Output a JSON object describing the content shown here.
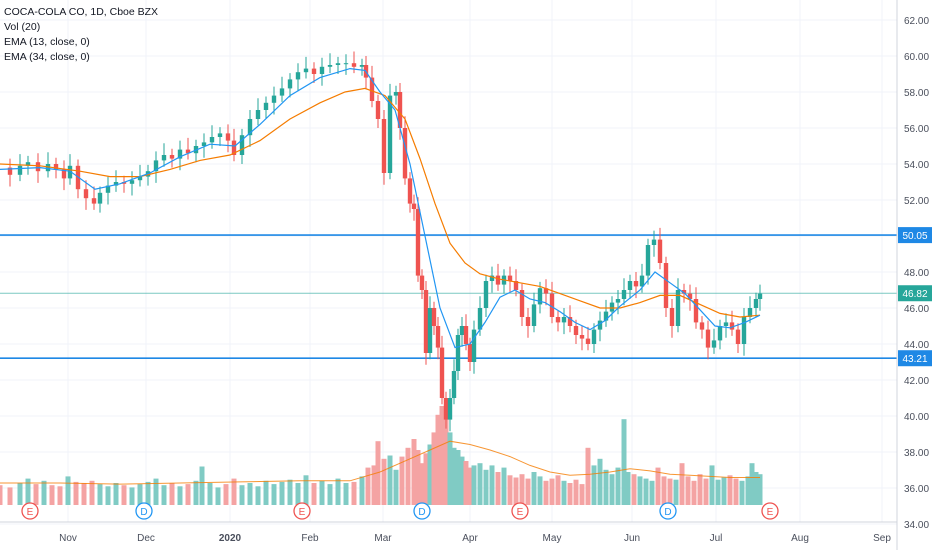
{
  "legend": {
    "symbol": "COCA-COLA CO, 1D, Cboe BZX",
    "vol": "Vol (20)",
    "ema13": "EMA (13, close, 0)",
    "ema34": "EMA (34, close, 0)"
  },
  "colors": {
    "up": "#26a69a",
    "down": "#ef5350",
    "vol_up": "#80cbc4",
    "vol_down": "#f4a3a3",
    "ema13": "#2196f3",
    "ema34": "#f57c00",
    "vol_ma": "#f57c00",
    "hline": "#1e88e5",
    "last": "#26a69a",
    "grid": "#f0f3fa"
  },
  "chart_data": {
    "type": "candlestick",
    "title": "COCA-COLA CO, 1D, Cboe BZX",
    "y_ticks": [
      "62.00",
      "60.00",
      "58.00",
      "56.00",
      "54.00",
      "52.00",
      "50.00",
      "48.00",
      "46.00",
      "44.00",
      "42.00",
      "40.00",
      "38.00",
      "36.00",
      "34.00"
    ],
    "y_range": [
      34,
      63
    ],
    "x_ticks": [
      "Nov",
      "Dec",
      "2020",
      "Feb",
      "Mar",
      "Apr",
      "May",
      "Jun",
      "Jul",
      "Aug",
      "Sep"
    ],
    "horizontal_lines": [
      {
        "label": "50.05",
        "value": 50.05
      },
      {
        "label": "43.21",
        "value": 43.21
      }
    ],
    "last_price": {
      "label": "46.82",
      "value": 46.82
    },
    "events": [
      {
        "label": "E",
        "month": "Oct",
        "kind": "earnings"
      },
      {
        "label": "D",
        "month": "Nov",
        "kind": "dividend"
      },
      {
        "label": "E",
        "month": "Jan",
        "kind": "earnings"
      },
      {
        "label": "D",
        "month": "Mar",
        "kind": "dividend"
      },
      {
        "label": "E",
        "month": "Apr",
        "kind": "earnings"
      },
      {
        "label": "D",
        "month": "Jun",
        "kind": "dividend"
      },
      {
        "label": "E",
        "month": "Jul",
        "kind": "earnings"
      }
    ],
    "close_path": [
      [
        0,
        53.8
      ],
      [
        10,
        53.4
      ],
      [
        20,
        53.9
      ],
      [
        28,
        54.1
      ],
      [
        38,
        53.6
      ],
      [
        48,
        54.0
      ],
      [
        56,
        53.7
      ],
      [
        64,
        53.2
      ],
      [
        70,
        53.9
      ],
      [
        78,
        52.6
      ],
      [
        86,
        52.1
      ],
      [
        94,
        51.8
      ],
      [
        100,
        52.4
      ],
      [
        108,
        52.8
      ],
      [
        116,
        53.0
      ],
      [
        124,
        52.9
      ],
      [
        132,
        53.1
      ],
      [
        140,
        53.3
      ],
      [
        148,
        53.6
      ],
      [
        156,
        54.2
      ],
      [
        164,
        54.5
      ],
      [
        172,
        54.3
      ],
      [
        180,
        54.8
      ],
      [
        188,
        54.6
      ],
      [
        196,
        55.0
      ],
      [
        204,
        55.2
      ],
      [
        212,
        55.5
      ],
      [
        220,
        55.7
      ],
      [
        228,
        55.3
      ],
      [
        234,
        54.5
      ],
      [
        242,
        55.6
      ],
      [
        250,
        56.5
      ],
      [
        258,
        57.0
      ],
      [
        266,
        57.4
      ],
      [
        274,
        57.8
      ],
      [
        282,
        58.2
      ],
      [
        290,
        58.7
      ],
      [
        298,
        59.1
      ],
      [
        306,
        59.3
      ],
      [
        314,
        59.0
      ],
      [
        322,
        59.4
      ],
      [
        330,
        59.5
      ],
      [
        338,
        59.6
      ],
      [
        346,
        59.6
      ],
      [
        354,
        59.4
      ],
      [
        362,
        59.5
      ],
      [
        366,
        58.8
      ],
      [
        372,
        57.5
      ],
      [
        378,
        56.5
      ],
      [
        384,
        53.5
      ],
      [
        390,
        57.8
      ],
      [
        396,
        58.0
      ],
      [
        400,
        56.0
      ],
      [
        405,
        53.2
      ],
      [
        410,
        51.8
      ],
      [
        414,
        51.5
      ],
      [
        418,
        47.8
      ],
      [
        422,
        47.0
      ],
      [
        426,
        43.5
      ],
      [
        430,
        46.0
      ],
      [
        434,
        45.0
      ],
      [
        438,
        43.8
      ],
      [
        442,
        41.0
      ],
      [
        446,
        39.8
      ],
      [
        450,
        41.0
      ],
      [
        454,
        42.5
      ],
      [
        458,
        44.5
      ],
      [
        462,
        45.0
      ],
      [
        466,
        44.0
      ],
      [
        470,
        43.0
      ],
      [
        474,
        44.8
      ],
      [
        480,
        46.0
      ],
      [
        486,
        47.5
      ],
      [
        492,
        47.8
      ],
      [
        498,
        47.3
      ],
      [
        504,
        47.8
      ],
      [
        510,
        47.5
      ],
      [
        516,
        47.0
      ],
      [
        522,
        45.5
      ],
      [
        528,
        45.0
      ],
      [
        534,
        46.2
      ],
      [
        540,
        47.1
      ],
      [
        546,
        46.8
      ],
      [
        552,
        45.5
      ],
      [
        558,
        45.2
      ],
      [
        564,
        45.5
      ],
      [
        570,
        45.0
      ],
      [
        576,
        44.5
      ],
      [
        582,
        44.3
      ],
      [
        588,
        44.0
      ],
      [
        594,
        44.8
      ],
      [
        600,
        45.3
      ],
      [
        606,
        45.8
      ],
      [
        612,
        46.3
      ],
      [
        618,
        46.5
      ],
      [
        624,
        47.0
      ],
      [
        630,
        47.5
      ],
      [
        636,
        47.2
      ],
      [
        642,
        47.8
      ],
      [
        648,
        49.5
      ],
      [
        654,
        49.8
      ],
      [
        660,
        48.5
      ],
      [
        666,
        46.0
      ],
      [
        672,
        45.0
      ],
      [
        678,
        47.0
      ],
      [
        684,
        46.8
      ],
      [
        690,
        46.5
      ],
      [
        696,
        45.2
      ],
      [
        702,
        44.8
      ],
      [
        708,
        43.8
      ],
      [
        714,
        44.2
      ],
      [
        720,
        45.0
      ],
      [
        726,
        45.2
      ],
      [
        732,
        44.8
      ],
      [
        738,
        44.0
      ],
      [
        744,
        45.5
      ],
      [
        750,
        46.0
      ],
      [
        756,
        46.5
      ],
      [
        760,
        46.8
      ]
    ],
    "ema13_path": [
      [
        0,
        53.7
      ],
      [
        40,
        53.8
      ],
      [
        70,
        53.6
      ],
      [
        95,
        52.6
      ],
      [
        120,
        52.9
      ],
      [
        150,
        53.5
      ],
      [
        180,
        54.4
      ],
      [
        210,
        55.1
      ],
      [
        235,
        55.0
      ],
      [
        260,
        56.2
      ],
      [
        290,
        57.8
      ],
      [
        320,
        58.8
      ],
      [
        350,
        59.3
      ],
      [
        365,
        59.2
      ],
      [
        380,
        58.0
      ],
      [
        395,
        57.0
      ],
      [
        410,
        54.0
      ],
      [
        425,
        50.0
      ],
      [
        440,
        46.0
      ],
      [
        455,
        43.8
      ],
      [
        470,
        44.0
      ],
      [
        485,
        45.2
      ],
      [
        500,
        46.6
      ],
      [
        515,
        47.0
      ],
      [
        530,
        46.5
      ],
      [
        545,
        46.3
      ],
      [
        560,
        45.8
      ],
      [
        575,
        45.2
      ],
      [
        590,
        44.8
      ],
      [
        605,
        45.3
      ],
      [
        620,
        46.1
      ],
      [
        640,
        47.0
      ],
      [
        655,
        48.0
      ],
      [
        670,
        47.4
      ],
      [
        685,
        46.8
      ],
      [
        700,
        45.9
      ],
      [
        715,
        45.0
      ],
      [
        730,
        44.9
      ],
      [
        745,
        45.2
      ],
      [
        760,
        45.6
      ]
    ],
    "ema34_path": [
      [
        0,
        54.0
      ],
      [
        40,
        53.9
      ],
      [
        80,
        53.6
      ],
      [
        110,
        53.3
      ],
      [
        140,
        53.3
      ],
      [
        170,
        53.7
      ],
      [
        200,
        54.2
      ],
      [
        230,
        54.5
      ],
      [
        260,
        55.3
      ],
      [
        290,
        56.5
      ],
      [
        320,
        57.4
      ],
      [
        345,
        58.0
      ],
      [
        365,
        58.2
      ],
      [
        385,
        57.8
      ],
      [
        405,
        56.5
      ],
      [
        420,
        54.3
      ],
      [
        435,
        51.8
      ],
      [
        450,
        49.6
      ],
      [
        465,
        48.5
      ],
      [
        480,
        47.9
      ],
      [
        500,
        47.6
      ],
      [
        520,
        47.4
      ],
      [
        540,
        47.2
      ],
      [
        560,
        46.8
      ],
      [
        580,
        46.4
      ],
      [
        600,
        46.0
      ],
      [
        620,
        46.0
      ],
      [
        640,
        46.3
      ],
      [
        660,
        46.7
      ],
      [
        680,
        46.7
      ],
      [
        700,
        46.2
      ],
      [
        720,
        45.7
      ],
      [
        740,
        45.5
      ],
      [
        760,
        45.6
      ]
    ],
    "volume_relative": [
      [
        0,
        0.18
      ],
      [
        10,
        0.16
      ],
      [
        20,
        0.2
      ],
      [
        28,
        0.24
      ],
      [
        36,
        0.19
      ],
      [
        44,
        0.22
      ],
      [
        52,
        0.18
      ],
      [
        60,
        0.17
      ],
      [
        68,
        0.26
      ],
      [
        76,
        0.21
      ],
      [
        84,
        0.2
      ],
      [
        92,
        0.22
      ],
      [
        100,
        0.19
      ],
      [
        108,
        0.17
      ],
      [
        116,
        0.2
      ],
      [
        124,
        0.18
      ],
      [
        132,
        0.16
      ],
      [
        140,
        0.19
      ],
      [
        148,
        0.21
      ],
      [
        156,
        0.24
      ],
      [
        164,
        0.18
      ],
      [
        172,
        0.2
      ],
      [
        180,
        0.17
      ],
      [
        188,
        0.19
      ],
      [
        196,
        0.22
      ],
      [
        202,
        0.35
      ],
      [
        210,
        0.2
      ],
      [
        218,
        0.16
      ],
      [
        226,
        0.19
      ],
      [
        234,
        0.24
      ],
      [
        242,
        0.18
      ],
      [
        250,
        0.2
      ],
      [
        258,
        0.17
      ],
      [
        266,
        0.22
      ],
      [
        274,
        0.19
      ],
      [
        282,
        0.21
      ],
      [
        290,
        0.23
      ],
      [
        298,
        0.2
      ],
      [
        306,
        0.27
      ],
      [
        314,
        0.2
      ],
      [
        322,
        0.22
      ],
      [
        330,
        0.19
      ],
      [
        338,
        0.24
      ],
      [
        346,
        0.2
      ],
      [
        354,
        0.21
      ],
      [
        362,
        0.26
      ],
      [
        368,
        0.34
      ],
      [
        374,
        0.36
      ],
      [
        378,
        0.58
      ],
      [
        384,
        0.42
      ],
      [
        390,
        0.45
      ],
      [
        396,
        0.32
      ],
      [
        402,
        0.44
      ],
      [
        408,
        0.52
      ],
      [
        414,
        0.6
      ],
      [
        418,
        0.5
      ],
      [
        422,
        0.38
      ],
      [
        426,
        0.47
      ],
      [
        430,
        0.55
      ],
      [
        434,
        0.66
      ],
      [
        438,
        0.82
      ],
      [
        442,
        0.9
      ],
      [
        446,
        0.78
      ],
      [
        450,
        0.66
      ],
      [
        454,
        0.52
      ],
      [
        458,
        0.5
      ],
      [
        462,
        0.44
      ],
      [
        466,
        0.4
      ],
      [
        470,
        0.34
      ],
      [
        474,
        0.36
      ],
      [
        480,
        0.38
      ],
      [
        486,
        0.32
      ],
      [
        492,
        0.36
      ],
      [
        498,
        0.3
      ],
      [
        504,
        0.34
      ],
      [
        510,
        0.27
      ],
      [
        516,
        0.25
      ],
      [
        522,
        0.28
      ],
      [
        528,
        0.24
      ],
      [
        534,
        0.3
      ],
      [
        540,
        0.26
      ],
      [
        546,
        0.22
      ],
      [
        552,
        0.24
      ],
      [
        558,
        0.27
      ],
      [
        564,
        0.22
      ],
      [
        570,
        0.2
      ],
      [
        576,
        0.23
      ],
      [
        582,
        0.19
      ],
      [
        588,
        0.52
      ],
      [
        594,
        0.36
      ],
      [
        600,
        0.42
      ],
      [
        606,
        0.32
      ],
      [
        612,
        0.28
      ],
      [
        618,
        0.34
      ],
      [
        624,
        0.78
      ],
      [
        628,
        0.3
      ],
      [
        634,
        0.28
      ],
      [
        640,
        0.26
      ],
      [
        646,
        0.24
      ],
      [
        652,
        0.22
      ],
      [
        658,
        0.34
      ],
      [
        664,
        0.26
      ],
      [
        670,
        0.24
      ],
      [
        676,
        0.23
      ],
      [
        682,
        0.38
      ],
      [
        688,
        0.26
      ],
      [
        694,
        0.22
      ],
      [
        700,
        0.28
      ],
      [
        706,
        0.24
      ],
      [
        712,
        0.36
      ],
      [
        718,
        0.23
      ],
      [
        724,
        0.25
      ],
      [
        730,
        0.27
      ],
      [
        736,
        0.24
      ],
      [
        742,
        0.22
      ],
      [
        748,
        0.26
      ],
      [
        752,
        0.38
      ],
      [
        756,
        0.3
      ],
      [
        760,
        0.28
      ]
    ],
    "volume_ma_relative": [
      [
        0,
        0.2
      ],
      [
        60,
        0.2
      ],
      [
        120,
        0.19
      ],
      [
        180,
        0.2
      ],
      [
        240,
        0.21
      ],
      [
        300,
        0.22
      ],
      [
        350,
        0.22
      ],
      [
        380,
        0.3
      ],
      [
        410,
        0.42
      ],
      [
        430,
        0.5
      ],
      [
        450,
        0.58
      ],
      [
        470,
        0.55
      ],
      [
        490,
        0.5
      ],
      [
        510,
        0.44
      ],
      [
        530,
        0.36
      ],
      [
        550,
        0.3
      ],
      [
        570,
        0.27
      ],
      [
        590,
        0.28
      ],
      [
        610,
        0.3
      ],
      [
        630,
        0.33
      ],
      [
        650,
        0.31
      ],
      [
        670,
        0.28
      ],
      [
        690,
        0.27
      ],
      [
        710,
        0.26
      ],
      [
        730,
        0.25
      ],
      [
        760,
        0.25
      ]
    ]
  }
}
